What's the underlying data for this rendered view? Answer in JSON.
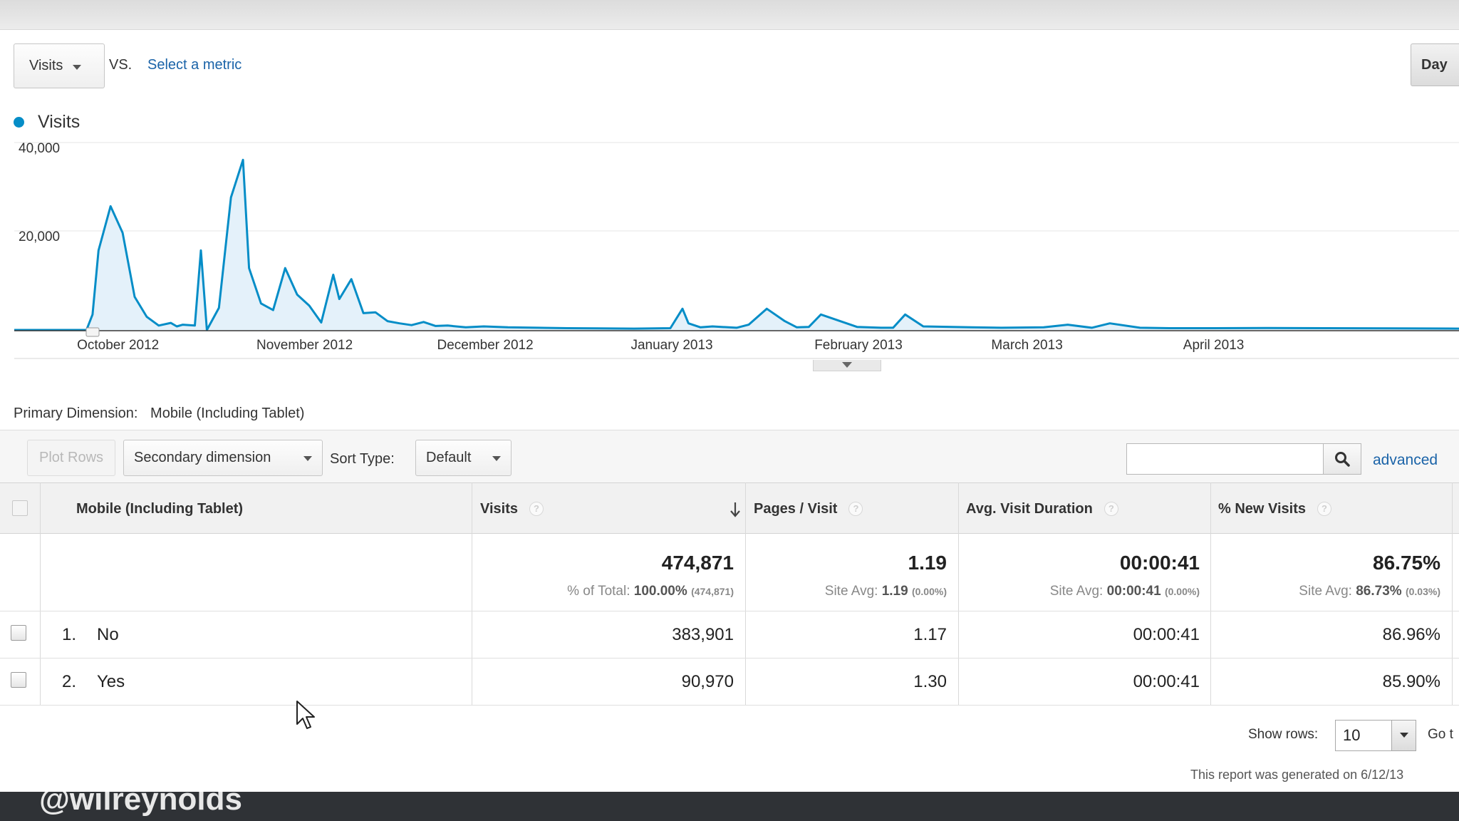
{
  "header": {
    "metric": "Visits",
    "vs": "VS.",
    "select_metric": "Select a metric",
    "period_button": "Day"
  },
  "legend": {
    "label": "Visits",
    "color": "#058dc7"
  },
  "chart_data": {
    "type": "area",
    "title": "",
    "xlabel": "",
    "ylabel": "",
    "ylim": [
      0,
      40000
    ],
    "y_ticks": [
      "40,000",
      "20,000"
    ],
    "x_tick_labels": [
      "October 2012",
      "November 2012",
      "December 2012",
      "January 2013",
      "February 2013",
      "March 2013",
      "April 2013"
    ],
    "grid": true,
    "series": [
      {
        "name": "Visits",
        "color": "#058dc7",
        "x": [
          "2012-09-14",
          "2012-09-16",
          "2012-09-18",
          "2012-09-20",
          "2012-09-22",
          "2012-09-24",
          "2012-09-26",
          "2012-09-27",
          "2012-09-28",
          "2012-09-30",
          "2012-10-02",
          "2012-10-04",
          "2012-10-06",
          "2012-10-08",
          "2012-10-10",
          "2012-10-11",
          "2012-10-12",
          "2012-10-14",
          "2012-10-15",
          "2012-10-16",
          "2012-10-18",
          "2012-10-20",
          "2012-10-22",
          "2012-10-23",
          "2012-10-25",
          "2012-10-27",
          "2012-10-29",
          "2012-10-31",
          "2012-11-02",
          "2012-11-04",
          "2012-11-06",
          "2012-11-07",
          "2012-11-09",
          "2012-11-11",
          "2012-11-13",
          "2012-11-15",
          "2012-11-17",
          "2012-11-19",
          "2012-11-21",
          "2012-11-23",
          "2012-11-25",
          "2012-11-28",
          "2012-12-01",
          "2012-12-05",
          "2012-12-10",
          "2012-12-15",
          "2012-12-20",
          "2012-12-26",
          "2013-01-01",
          "2013-01-03",
          "2013-01-04",
          "2013-01-06",
          "2013-01-08",
          "2013-01-12",
          "2013-01-14",
          "2013-01-17",
          "2013-01-20",
          "2013-01-22",
          "2013-01-24",
          "2013-01-26",
          "2013-02-01",
          "2013-02-05",
          "2013-02-07",
          "2013-02-09",
          "2013-02-12",
          "2013-02-20",
          "2013-02-25",
          "2013-03-04",
          "2013-03-08",
          "2013-03-12",
          "2013-03-15",
          "2013-03-20",
          "2013-03-25",
          "2013-04-01",
          "2013-04-10",
          "2013-04-20",
          "2013-05-01",
          "2013-05-12"
        ],
        "values": [
          0,
          0,
          0,
          0,
          0,
          0,
          0,
          3500,
          18000,
          28000,
          22000,
          7500,
          3000,
          1000,
          1600,
          800,
          1200,
          1000,
          18000,
          0,
          5000,
          30000,
          38500,
          14000,
          6000,
          4500,
          14000,
          8000,
          5500,
          1700,
          12500,
          7000,
          11500,
          3800,
          4000,
          2000,
          1500,
          1100,
          1800,
          900,
          1000,
          600,
          800,
          600,
          500,
          400,
          350,
          300,
          400,
          4800,
          1500,
          600,
          800,
          500,
          1200,
          4800,
          2000,
          600,
          700,
          3500,
          700,
          500,
          500,
          3500,
          800,
          600,
          500,
          600,
          1200,
          500,
          1500,
          500,
          400,
          400,
          450,
          400,
          350,
          300
        ]
      }
    ]
  },
  "primary_dimension": {
    "label": "Primary Dimension:",
    "value": "Mobile (Including Tablet)"
  },
  "toolbar": {
    "plot_rows": "Plot Rows",
    "secondary_dimension": "Secondary dimension",
    "sort_type_label": "Sort Type:",
    "sort_type_value": "Default",
    "search_value": "",
    "advanced": "advanced"
  },
  "table": {
    "columns": [
      "Mobile (Including Tablet)",
      "Visits",
      "Pages / Visit",
      "Avg. Visit Duration",
      "% New Visits"
    ],
    "totals": {
      "visits": "474,871",
      "visits_sub_label": "% of Total:",
      "visits_sub_value": "100.00%",
      "visits_sub_extra": "(474,871)",
      "pages": "1.19",
      "pages_sub_label": "Site Avg:",
      "pages_sub_value": "1.19",
      "pages_sub_extra": "(0.00%)",
      "duration": "00:00:41",
      "duration_sub_label": "Site Avg:",
      "duration_sub_value": "00:00:41",
      "duration_sub_extra": "(0.00%)",
      "new_visits": "86.75%",
      "new_sub_label": "Site Avg:",
      "new_sub_value": "86.73%",
      "new_sub_extra": "(0.03%)"
    },
    "rows": [
      {
        "index": "1.",
        "label": "No",
        "visits": "383,901",
        "pages": "1.17",
        "duration": "00:00:41",
        "new_visits": "86.96%"
      },
      {
        "index": "2.",
        "label": "Yes",
        "visits": "90,970",
        "pages": "1.30",
        "duration": "00:00:41",
        "new_visits": "85.90%"
      }
    ]
  },
  "footer": {
    "show_rows_label": "Show rows:",
    "show_rows_value": "10",
    "goto_label": "Go t",
    "generated": "This report was generated on 6/12/13"
  },
  "watermark": "@wilreynolds"
}
